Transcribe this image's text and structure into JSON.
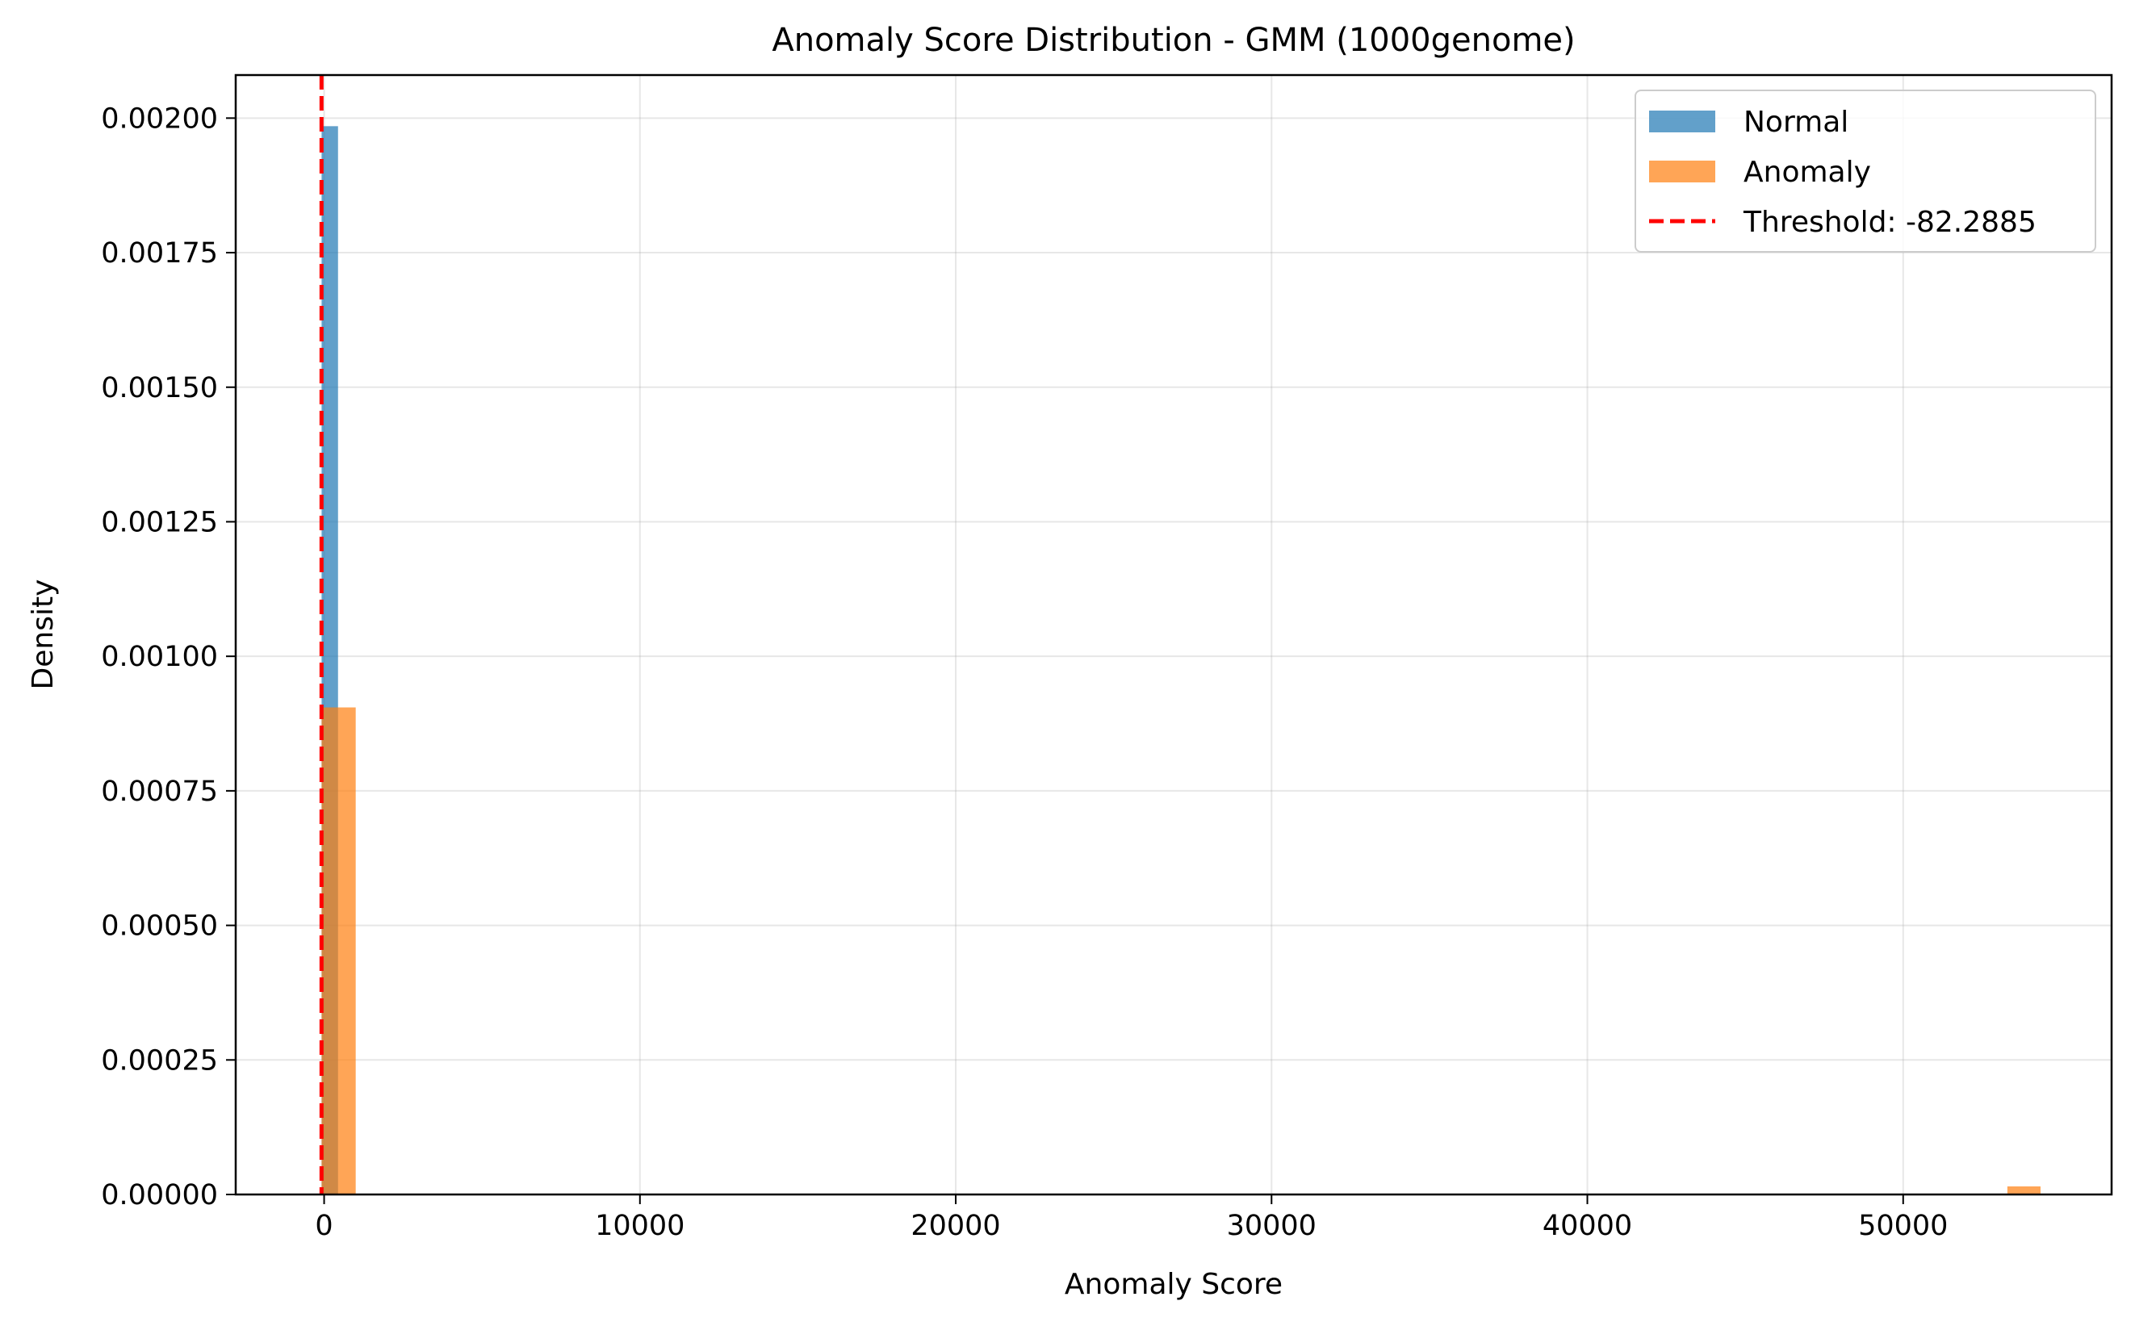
{
  "chart_data": {
    "type": "bar",
    "title": "Anomaly Score Distribution - GMM (1000genome)",
    "xlabel": "Anomaly Score",
    "ylabel": "Density",
    "xlim": [
      -2800,
      56600
    ],
    "ylim": [
      0,
      0.00208
    ],
    "xticks": [
      0,
      10000,
      20000,
      30000,
      40000,
      50000
    ],
    "xtick_labels": [
      "0",
      "10000",
      "20000",
      "30000",
      "40000",
      "50000"
    ],
    "yticks": [
      0,
      0.00025,
      0.0005,
      0.00075,
      0.001,
      0.00125,
      0.0015,
      0.00175,
      0.002
    ],
    "ytick_labels": [
      "0.00000",
      "0.00025",
      "0.00050",
      "0.00075",
      "0.00100",
      "0.00125",
      "0.00150",
      "0.00175",
      "0.00200"
    ],
    "grid": true,
    "legend_position": "top-right",
    "series": [
      {
        "name": "Normal",
        "color": "#1f77b4",
        "opacity": 0.7,
        "bins": [
          {
            "x0": -80,
            "x1": 440,
            "density": 0.001985
          }
        ]
      },
      {
        "name": "Anomaly",
        "color": "#ff7f0e",
        "opacity": 0.7,
        "bins": [
          {
            "x0": -80,
            "x1": 1000,
            "density": 0.000905
          },
          {
            "x0": 53300,
            "x1": 54350,
            "density": 1.5e-05
          }
        ]
      }
    ],
    "threshold": {
      "label": "Threshold: -82.2885",
      "value": -82.2885,
      "color": "#ff0000",
      "style": "dashed"
    }
  }
}
